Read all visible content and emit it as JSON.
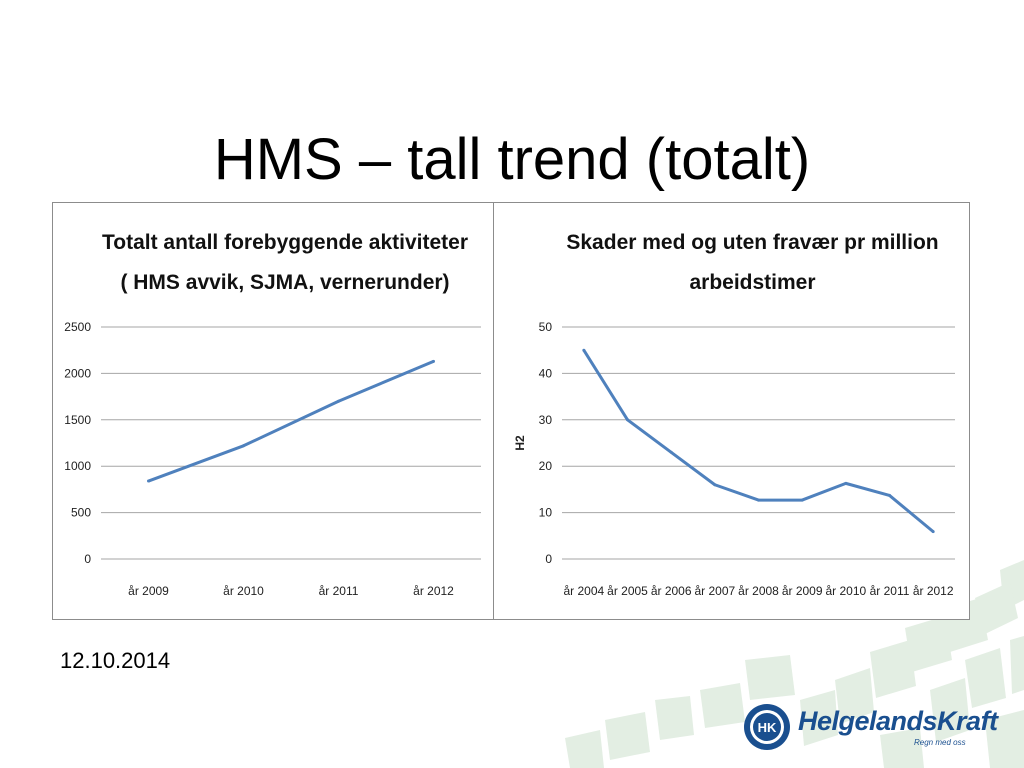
{
  "slide": {
    "title": "HMS – tall trend (totalt)",
    "date": "12.10.2014"
  },
  "logo": {
    "name": "HelgelandsKraft",
    "tagline": "Regn med oss",
    "mark": "HK"
  },
  "colors": {
    "line": "#4f81bd",
    "grid": "#a6a6a6",
    "decor": "#e3eee3",
    "brand": "#1a4f8f"
  },
  "chart_data": [
    {
      "type": "line",
      "title_lines": [
        "Totalt antall forebyggende aktiviteter",
        "( HMS avvik, SJMA, vernerunder)"
      ],
      "categories": [
        "år 2009",
        "år 2010",
        "år 2011",
        "år 2012"
      ],
      "series": [
        {
          "values": [
            840,
            1220,
            1700,
            2130
          ]
        }
      ],
      "ylim": [
        0,
        2500
      ],
      "yticks": [
        0,
        500,
        1000,
        1500,
        2000,
        2500
      ],
      "ylabel": "",
      "grid": true,
      "legend": "none"
    },
    {
      "type": "line",
      "title_lines": [
        "Skader med og uten fravær pr million",
        "arbeidstimer"
      ],
      "categories": [
        "år 2004",
        "år 2005",
        "år 2006",
        "år 2007",
        "år 2008",
        "år 2009",
        "år 2010",
        "år 2011",
        "år 2012"
      ],
      "series": [
        {
          "values": [
            45,
            30,
            23,
            16,
            12.7,
            12.7,
            16.3,
            13.7,
            5.9
          ]
        }
      ],
      "ylim": [
        0,
        50
      ],
      "yticks": [
        0,
        10,
        20,
        30,
        40,
        50
      ],
      "ylabel": "H2",
      "grid": true,
      "legend": "none"
    }
  ]
}
